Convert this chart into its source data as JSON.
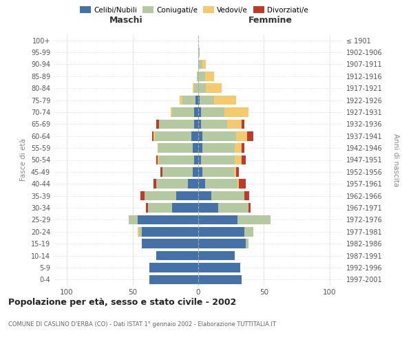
{
  "age_groups": [
    "0-4",
    "5-9",
    "10-14",
    "15-19",
    "20-24",
    "25-29",
    "30-34",
    "35-39",
    "40-44",
    "45-49",
    "50-54",
    "55-59",
    "60-64",
    "65-69",
    "70-74",
    "75-79",
    "80-84",
    "85-89",
    "90-94",
    "95-99",
    "100+"
  ],
  "birth_years": [
    "1997-2001",
    "1992-1996",
    "1987-1991",
    "1982-1986",
    "1977-1981",
    "1972-1976",
    "1967-1971",
    "1962-1966",
    "1957-1961",
    "1952-1956",
    "1947-1951",
    "1942-1946",
    "1937-1941",
    "1932-1936",
    "1927-1931",
    "1922-1926",
    "1917-1921",
    "1912-1916",
    "1907-1911",
    "1902-1906",
    "≤ 1901"
  ],
  "males": {
    "celibi": [
      37,
      37,
      32,
      43,
      43,
      46,
      20,
      17,
      8,
      4,
      3,
      4,
      5,
      3,
      3,
      2,
      0,
      0,
      0,
      0,
      0
    ],
    "coniugati": [
      0,
      0,
      0,
      0,
      2,
      7,
      18,
      24,
      24,
      23,
      27,
      27,
      28,
      27,
      17,
      10,
      3,
      1,
      0,
      0,
      0
    ],
    "vedovi": [
      0,
      0,
      0,
      0,
      1,
      0,
      0,
      0,
      0,
      0,
      1,
      0,
      1,
      0,
      1,
      2,
      1,
      0,
      0,
      0,
      0
    ],
    "divorziati": [
      0,
      0,
      0,
      0,
      0,
      0,
      2,
      3,
      2,
      2,
      1,
      0,
      1,
      2,
      0,
      0,
      0,
      0,
      0,
      0,
      0
    ]
  },
  "females": {
    "nubili": [
      33,
      32,
      28,
      36,
      35,
      30,
      15,
      10,
      5,
      3,
      2,
      3,
      3,
      2,
      2,
      1,
      0,
      0,
      0,
      0,
      0
    ],
    "coniugate": [
      0,
      0,
      0,
      2,
      7,
      25,
      23,
      25,
      25,
      24,
      26,
      25,
      26,
      20,
      18,
      11,
      6,
      5,
      3,
      1,
      0
    ],
    "vedove": [
      0,
      0,
      0,
      0,
      0,
      0,
      0,
      0,
      1,
      2,
      5,
      5,
      8,
      11,
      18,
      17,
      12,
      7,
      3,
      0,
      0
    ],
    "divorziate": [
      0,
      0,
      0,
      0,
      0,
      0,
      2,
      4,
      5,
      2,
      3,
      2,
      5,
      2,
      0,
      0,
      0,
      0,
      0,
      0,
      0
    ]
  },
  "colors": {
    "celibi": "#4472a8",
    "coniugati": "#b5c9a0",
    "vedovi": "#f5c96e",
    "divorziati": "#c0392b"
  },
  "xlim": 110,
  "title": "Popolazione per età, sesso e stato civile - 2002",
  "subtitle": "COMUNE DI CASLINO D'ERBA (CO) - Dati ISTAT 1° gennaio 2002 - Elaborazione TUTTITALIA.IT",
  "ylabel_left": "Fasce di età",
  "ylabel_right": "Anni di nascita",
  "xlabel_left": "Maschi",
  "xlabel_right": "Femmine"
}
